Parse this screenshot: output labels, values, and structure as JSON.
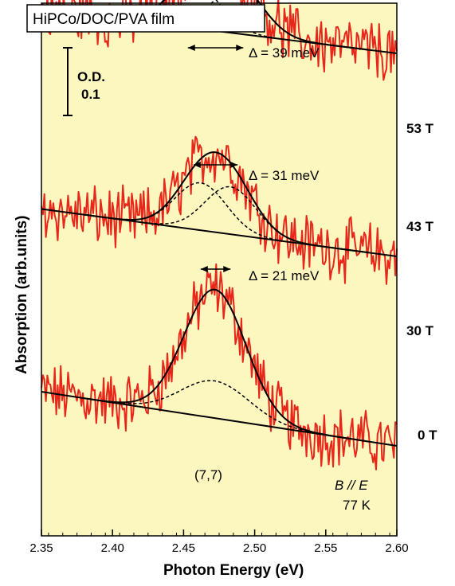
{
  "chart_data": {
    "type": "line",
    "title": "HiPCo/DOC/PVA film",
    "xlabel": "Photon Energy (eV)",
    "ylabel": "Absorption (arb.units)",
    "xlim": [
      2.35,
      2.6
    ],
    "x_ticks": [
      "2.35",
      "2.40",
      "2.45",
      "2.50",
      "2.55",
      "2.60"
    ],
    "x_tick_values": [
      2.35,
      2.4,
      2.45,
      2.5,
      2.55,
      2.6
    ],
    "grid": false,
    "background": "#fcf7bf",
    "scale_bar": {
      "label_line1": "O.D.",
      "label_line2": "0.1",
      "od": 0.1
    },
    "annotations": {
      "chirality": "(7,7)",
      "geometry": "B // E",
      "temperature": "77 K"
    },
    "series": [
      {
        "name": "0 T",
        "offset": 0.0,
        "baseline": {
          "y_at_2_35": 0.08,
          "y_at_2_60": 0.0
        },
        "peaks": [
          {
            "center": 2.472,
            "width": 0.021,
            "height": 0.135
          },
          {
            "center": 2.472,
            "width": 0.024,
            "height": 0.055
          }
        ],
        "split_ev": 0.0
      },
      {
        "name": "30 T",
        "offset": 0.28,
        "baseline": {
          "y_at_2_35": 0.07,
          "y_at_2_60": 0.0
        },
        "peaks": [
          {
            "center": 2.462,
            "width": 0.018,
            "height": 0.07
          },
          {
            "center": 2.483,
            "width": 0.018,
            "height": 0.07
          }
        ],
        "split_ev": 0.021,
        "delta_label": "Δ = 21 meV"
      },
      {
        "name": "43 T",
        "offset": 0.58,
        "baseline": {
          "y_at_2_35": 0.065,
          "y_at_2_60": 0.0
        },
        "peaks": [
          {
            "center": 2.457,
            "width": 0.018,
            "height": 0.068
          },
          {
            "center": 2.488,
            "width": 0.018,
            "height": 0.068
          }
        ],
        "split_ev": 0.031,
        "delta_label": "Δ = 31 meV"
      },
      {
        "name": "53 T",
        "offset": 0.88,
        "baseline": {
          "y_at_2_35": 0.06,
          "y_at_2_60": 0.0
        },
        "peaks": [
          {
            "center": 2.453,
            "width": 0.018,
            "height": 0.066
          },
          {
            "center": 2.492,
            "width": 0.018,
            "height": 0.066
          }
        ],
        "split_ev": 0.039,
        "delta_label": "Δ = 39 meV"
      }
    ],
    "series_color": "#e8261a",
    "fit_color": "#000000"
  }
}
